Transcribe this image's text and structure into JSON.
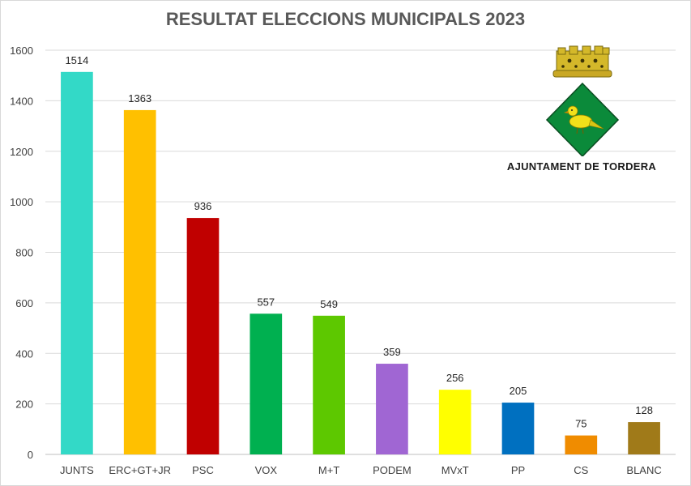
{
  "chart_data": {
    "type": "bar",
    "title": "RESULTAT ELECCIONS MUNICIPALS 2023",
    "categories": [
      "JUNTS",
      "ERC+GT+JR",
      "PSC",
      "VOX",
      "M+T",
      "PODEM",
      "MVxT",
      "PP",
      "CS",
      "BLANC"
    ],
    "values": [
      1514,
      1363,
      936,
      557,
      549,
      359,
      256,
      205,
      75,
      128
    ],
    "colors": [
      "#33d9c7",
      "#ffc000",
      "#c00000",
      "#00b050",
      "#5dc800",
      "#a066d3",
      "#ffff00",
      "#0070c0",
      "#f08c00",
      "#a07a19"
    ],
    "ylim": [
      0,
      1600
    ],
    "yticks": [
      0,
      200,
      400,
      600,
      800,
      1000,
      1200,
      1400,
      1600
    ],
    "grid": true,
    "data_labels": true
  },
  "logo": {
    "caption": "AJUNTAMENT DE TORDERA"
  }
}
